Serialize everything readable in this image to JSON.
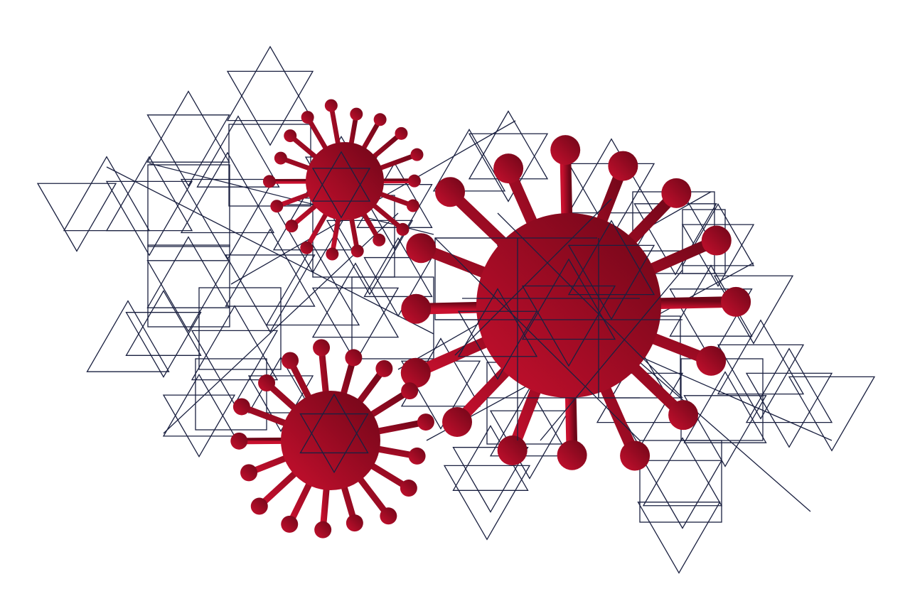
{
  "illustration": {
    "subject": "virus-particles-over-geometric-triangle-lattice",
    "background_color": "#ffffff",
    "line_color": "#1a2040",
    "virus_colors": {
      "light": "#c8102e",
      "dark": "#6e0618"
    },
    "viruses": [
      {
        "id": "virus-large-right"
      },
      {
        "id": "virus-small-top"
      },
      {
        "id": "virus-small-bottom"
      }
    ]
  }
}
